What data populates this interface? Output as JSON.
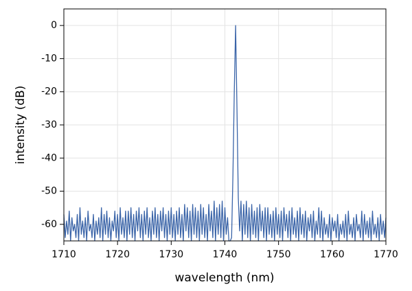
{
  "chart_data": {
    "type": "line",
    "xlabel": "wavelength (nm)",
    "ylabel": "intensity (dB)",
    "xlim": [
      1710,
      1770
    ],
    "xticks": [
      1710,
      1720,
      1730,
      1740,
      1750,
      1760,
      1770
    ],
    "ylim": [
      -65,
      5
    ],
    "yticks": [
      0,
      -10,
      -20,
      -30,
      -40,
      -50,
      -60
    ],
    "grid": true,
    "series": [
      {
        "color": "#3a64a8",
        "x": [
          1710,
          1710.25,
          1710.5,
          1710.75,
          1711,
          1711.25,
          1711.5,
          1711.75,
          1712,
          1712.25,
          1712.5,
          1712.75,
          1713,
          1713.25,
          1713.5,
          1713.75,
          1714,
          1714.25,
          1714.5,
          1714.75,
          1715,
          1715.25,
          1715.5,
          1715.75,
          1716,
          1716.25,
          1716.5,
          1716.75,
          1717,
          1717.25,
          1717.5,
          1717.75,
          1718,
          1718.25,
          1718.5,
          1718.75,
          1719,
          1719.25,
          1719.5,
          1719.75,
          1720,
          1720.25,
          1720.5,
          1720.75,
          1721,
          1721.25,
          1721.5,
          1721.75,
          1722,
          1722.25,
          1722.5,
          1722.75,
          1723,
          1723.25,
          1723.5,
          1723.75,
          1724,
          1724.25,
          1724.5,
          1724.75,
          1725,
          1725.25,
          1725.5,
          1725.75,
          1726,
          1726.25,
          1726.5,
          1726.75,
          1727,
          1727.25,
          1727.5,
          1727.75,
          1728,
          1728.25,
          1728.5,
          1728.75,
          1729,
          1729.25,
          1729.5,
          1729.75,
          1730,
          1730.25,
          1730.5,
          1730.75,
          1731,
          1731.25,
          1731.5,
          1731.75,
          1732,
          1732.25,
          1732.5,
          1732.75,
          1733,
          1733.25,
          1733.5,
          1733.75,
          1734,
          1734.25,
          1734.5,
          1734.75,
          1735,
          1735.25,
          1735.5,
          1735.75,
          1736,
          1736.25,
          1736.5,
          1736.75,
          1737,
          1737.25,
          1737.5,
          1737.75,
          1738,
          1738.25,
          1738.5,
          1738.75,
          1739,
          1739.25,
          1739.5,
          1739.75,
          1740,
          1740.25,
          1740.5,
          1740.75,
          1741,
          1741.25,
          1741.5,
          1741.75,
          1742,
          1742.25,
          1742.5,
          1742.75,
          1743,
          1743.25,
          1743.5,
          1743.75,
          1744,
          1744.25,
          1744.5,
          1744.75,
          1745,
          1745.25,
          1745.5,
          1745.75,
          1746,
          1746.25,
          1746.5,
          1746.75,
          1747,
          1747.25,
          1747.5,
          1747.75,
          1748,
          1748.25,
          1748.5,
          1748.75,
          1749,
          1749.25,
          1749.5,
          1749.75,
          1750,
          1750.25,
          1750.5,
          1750.75,
          1751,
          1751.25,
          1751.5,
          1751.75,
          1752,
          1752.25,
          1752.5,
          1752.75,
          1753,
          1753.25,
          1753.5,
          1753.75,
          1754,
          1754.25,
          1754.5,
          1754.75,
          1755,
          1755.25,
          1755.5,
          1755.75,
          1756,
          1756.25,
          1756.5,
          1756.75,
          1757,
          1757.25,
          1757.5,
          1757.75,
          1758,
          1758.25,
          1758.5,
          1758.75,
          1759,
          1759.25,
          1759.5,
          1759.75,
          1760,
          1760.25,
          1760.5,
          1760.75,
          1761,
          1761.25,
          1761.5,
          1761.75,
          1762,
          1762.25,
          1762.5,
          1762.75,
          1763,
          1763.25,
          1763.5,
          1763.75,
          1764,
          1764.25,
          1764.5,
          1764.75,
          1765,
          1765.25,
          1765.5,
          1765.75,
          1766,
          1766.25,
          1766.5,
          1766.75,
          1767,
          1767.25,
          1767.5,
          1767.75,
          1768,
          1768.25,
          1768.5,
          1768.75,
          1769,
          1769.25,
          1769.5,
          1769.75,
          1770
        ],
        "values": [
          -57,
          -64,
          -59,
          -63,
          -56,
          -65,
          -58,
          -62,
          -60,
          -64,
          -57,
          -65,
          -55,
          -63,
          -59,
          -64,
          -58,
          -65,
          -56,
          -62,
          -60,
          -64,
          -57,
          -65,
          -59,
          -63,
          -58,
          -64,
          -55,
          -65,
          -57,
          -63,
          -56,
          -64,
          -58,
          -65,
          -59,
          -62,
          -56,
          -64,
          -57,
          -65,
          -55,
          -63,
          -58,
          -64,
          -56,
          -65,
          -56,
          -63,
          -55,
          -64,
          -57,
          -65,
          -56,
          -62,
          -55,
          -64,
          -57,
          -65,
          -56,
          -63,
          -55,
          -64,
          -58,
          -65,
          -56,
          -63,
          -55,
          -64,
          -57,
          -65,
          -56,
          -62,
          -55,
          -64,
          -57,
          -65,
          -56,
          -63,
          -55,
          -64,
          -57,
          -65,
          -56,
          -63,
          -55,
          -64,
          -57,
          -65,
          -54,
          -62,
          -55,
          -64,
          -56,
          -65,
          -54,
          -63,
          -55,
          -64,
          -56,
          -65,
          -54,
          -63,
          -55,
          -64,
          -57,
          -65,
          -54,
          -62,
          -56,
          -64,
          -53,
          -65,
          -55,
          -63,
          -54,
          -64,
          -53,
          -65,
          -55,
          -63,
          -58,
          -65,
          -65,
          -64,
          -45,
          -20,
          0,
          -25,
          -52,
          -62,
          -53,
          -65,
          -54,
          -63,
          -53,
          -64,
          -55,
          -65,
          -54,
          -63,
          -56,
          -64,
          -55,
          -65,
          -54,
          -62,
          -56,
          -64,
          -55,
          -65,
          -55,
          -63,
          -57,
          -64,
          -56,
          -65,
          -55,
          -63,
          -57,
          -64,
          -56,
          -65,
          -55,
          -62,
          -57,
          -64,
          -56,
          -65,
          -55,
          -63,
          -58,
          -64,
          -56,
          -65,
          -55,
          -63,
          -57,
          -64,
          -56,
          -65,
          -58,
          -62,
          -57,
          -64,
          -56,
          -65,
          -59,
          -63,
          -55,
          -64,
          -56,
          -65,
          -58,
          -63,
          -60,
          -64,
          -57,
          -65,
          -58,
          -62,
          -59,
          -64,
          -57,
          -65,
          -60,
          -63,
          -59,
          -64,
          -57,
          -65,
          -56,
          -63,
          -60,
          -64,
          -58,
          -65,
          -57,
          -62,
          -60,
          -64,
          -56,
          -65,
          -57,
          -63,
          -59,
          -64,
          -58,
          -65,
          -56,
          -63,
          -60,
          -64,
          -58,
          -65,
          -57,
          -63,
          -59,
          -64,
          -58
        ]
      }
    ]
  }
}
